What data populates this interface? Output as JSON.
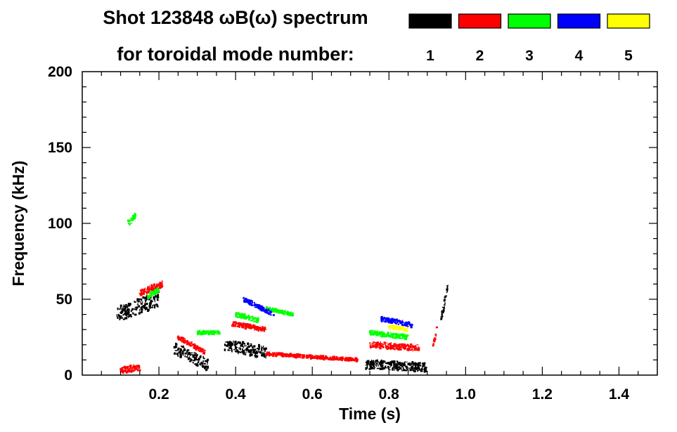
{
  "chart_data": {
    "type": "scatter",
    "title_line1": "Shot 123848 ωB(ω) spectrum",
    "title_line2": "for toroidal mode number:",
    "xlabel": "Time (s)",
    "ylabel": "Frequency (kHz)",
    "xlim": [
      0.0,
      1.5
    ],
    "ylim": [
      0,
      200
    ],
    "x_ticks": [
      0.2,
      0.4,
      0.6,
      0.8,
      1.0,
      1.2,
      1.4
    ],
    "x_tick_labels": [
      "0.2",
      "0.4",
      "0.6",
      "0.8",
      "1.0",
      "1.2",
      "1.4"
    ],
    "y_ticks": [
      0,
      50,
      100,
      150,
      200
    ],
    "y_tick_labels": [
      "0",
      "50",
      "100",
      "150",
      "200"
    ],
    "grid": false,
    "legend_placement": "top-right",
    "legend": [
      {
        "label": "1",
        "color": "#000000"
      },
      {
        "label": "2",
        "color": "#ff0000"
      },
      {
        "label": "3",
        "color": "#00ff00"
      },
      {
        "label": "4",
        "color": "#0000ff"
      },
      {
        "label": "5",
        "color": "#ffff00"
      }
    ],
    "series": [
      {
        "mode": "1",
        "color": "#000000",
        "bands": [
          {
            "t_start": 0.09,
            "t_end": 0.2,
            "f_start": 40,
            "f_end": 50,
            "spread": 10
          },
          {
            "t_start": 0.24,
            "t_end": 0.33,
            "f_start": 18,
            "f_end": 6,
            "spread": 8
          },
          {
            "t_start": 0.37,
            "t_end": 0.48,
            "f_start": 20,
            "f_end": 15,
            "spread": 8
          },
          {
            "t_start": 0.74,
            "t_end": 0.9,
            "f_start": 7,
            "f_end": 5,
            "spread": 6
          },
          {
            "t_start": 0.935,
            "t_end": 0.955,
            "f_start": 35,
            "f_end": 60,
            "spread": 5
          }
        ]
      },
      {
        "mode": "2",
        "color": "#ff0000",
        "bands": [
          {
            "t_start": 0.1,
            "t_end": 0.15,
            "f_start": 3,
            "f_end": 5,
            "spread": 4
          },
          {
            "t_start": 0.15,
            "t_end": 0.21,
            "f_start": 54,
            "f_end": 60,
            "spread": 4
          },
          {
            "t_start": 0.25,
            "t_end": 0.32,
            "f_start": 25,
            "f_end": 15,
            "spread": 3
          },
          {
            "t_start": 0.39,
            "t_end": 0.48,
            "f_start": 34,
            "f_end": 30,
            "spread": 3
          },
          {
            "t_start": 0.48,
            "t_end": 0.72,
            "f_start": 14,
            "f_end": 10,
            "spread": 2
          },
          {
            "t_start": 0.75,
            "t_end": 0.88,
            "f_start": 20,
            "f_end": 18,
            "spread": 4
          },
          {
            "t_start": 0.915,
            "t_end": 0.925,
            "f_start": 18,
            "f_end": 30,
            "spread": 3
          }
        ]
      },
      {
        "mode": "3",
        "color": "#00ff00",
        "bands": [
          {
            "t_start": 0.12,
            "t_end": 0.14,
            "f_start": 100,
            "f_end": 105,
            "spread": 4
          },
          {
            "t_start": 0.17,
            "t_end": 0.2,
            "f_start": 52,
            "f_end": 56,
            "spread": 3
          },
          {
            "t_start": 0.3,
            "t_end": 0.36,
            "f_start": 28,
            "f_end": 28,
            "spread": 2
          },
          {
            "t_start": 0.4,
            "t_end": 0.46,
            "f_start": 40,
            "f_end": 36,
            "spread": 3
          },
          {
            "t_start": 0.48,
            "t_end": 0.55,
            "f_start": 44,
            "f_end": 40,
            "spread": 2
          },
          {
            "t_start": 0.75,
            "t_end": 0.85,
            "f_start": 28,
            "f_end": 25,
            "spread": 3
          }
        ]
      },
      {
        "mode": "4",
        "color": "#0000ff",
        "bands": [
          {
            "t_start": 0.42,
            "t_end": 0.5,
            "f_start": 50,
            "f_end": 40,
            "spread": 3
          },
          {
            "t_start": 0.78,
            "t_end": 0.86,
            "f_start": 37,
            "f_end": 33,
            "spread": 3
          }
        ]
      },
      {
        "mode": "5",
        "color": "#ffff00",
        "bands": [
          {
            "t_start": 0.8,
            "t_end": 0.85,
            "f_start": 32,
            "f_end": 30,
            "spread": 2
          }
        ]
      }
    ]
  }
}
